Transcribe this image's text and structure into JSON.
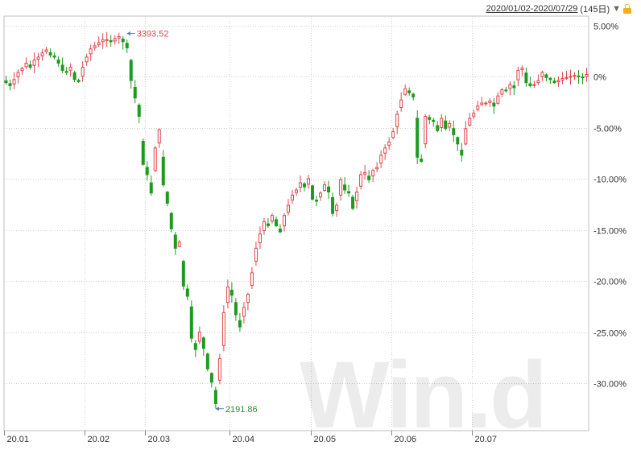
{
  "header": {
    "date_range": "2020/01/02-2020/07/29",
    "count": "(145日)",
    "dropdown_icon": "triangle-down-icon",
    "lock_icon": "lock-icon"
  },
  "watermark": "Win.d",
  "colors": {
    "up": "#e0454b",
    "down": "#1f9a1f",
    "grid": "#cfcfcf",
    "axis": "#888888"
  },
  "chart_data": {
    "type": "candlestick",
    "y_unit": "% change",
    "ylim": [
      -34,
      6
    ],
    "yticks": [
      5,
      0,
      -5,
      -10,
      -15,
      -20,
      -25,
      -30
    ],
    "ytick_labels": [
      "5.00%",
      "0%",
      "-5.00%",
      "-10.00%",
      "-15.00%",
      "-20.00%",
      "-25.00%",
      "-30.00%"
    ],
    "xtick_labels": [
      "20.01",
      "20.02",
      "20.03",
      "20.04",
      "20.05",
      "20.06",
      "20.07"
    ],
    "xtick_index": [
      0,
      20,
      35,
      56,
      76,
      96,
      116
    ],
    "n_bars": 145,
    "annotations": [
      {
        "label": "3393.52",
        "bar": 30,
        "value": 4.2,
        "type": "high"
      },
      {
        "label": "2191.86",
        "bar": 52,
        "value": -32.5,
        "type": "low"
      }
    ],
    "close": [
      -0.6,
      -0.9,
      -0.3,
      0.4,
      0.8,
      1.3,
      0.9,
      1.6,
      1.9,
      2.3,
      2.6,
      2.1,
      1.9,
      1.3,
      0.6,
      0.4,
      0.9,
      -0.3,
      -0.5,
      0.9,
      1.9,
      2.7,
      3.0,
      3.3,
      3.6,
      3.6,
      3.4,
      3.7,
      3.9,
      3.4,
      2.8,
      -0.4,
      -2.1,
      -3.9,
      -8.6,
      -9.6,
      -11.4,
      -7.0,
      -5.2,
      -10.6,
      -12.4,
      -14.9,
      -16.8,
      -16.2,
      -20.5,
      -21.5,
      -25.6,
      -26.7,
      -25.0,
      -26.6,
      -28.6,
      -29.9,
      -32.0,
      -27.6,
      -23.1,
      -20.6,
      -21.4,
      -23.3,
      -24.5,
      -22.6,
      -21.3,
      -19.2,
      -16.8,
      -15.4,
      -14.2,
      -14.6,
      -13.6,
      -14.6,
      -15.2,
      -13.6,
      -12.6,
      -11.6,
      -11.1,
      -10.4,
      -10.8,
      -10.0,
      -12.0,
      -12.2,
      -11.4,
      -10.6,
      -11.3,
      -13.4,
      -12.6,
      -10.1,
      -11.1,
      -11.4,
      -12.9,
      -11.3,
      -9.6,
      -9.4,
      -10.1,
      -9.2,
      -8.9,
      -7.7,
      -7.0,
      -6.4,
      -5.4,
      -3.7,
      -2.3,
      -1.2,
      -1.6,
      -2.0,
      -7.9,
      -8.3,
      -3.9,
      -4.2,
      -4.4,
      -5.3,
      -4.1,
      -5.1,
      -4.6,
      -5.7,
      -6.6,
      -7.7,
      -5.1,
      -4.1,
      -3.6,
      -2.9,
      -2.6,
      -2.6,
      -2.4,
      -2.9,
      -1.9,
      -1.3,
      -1.4,
      -0.8,
      -1.1,
      0.6,
      0.8,
      -0.6,
      -0.9,
      -0.8,
      -0.4,
      0.4,
      -0.1,
      -0.3,
      -0.6,
      -0.4,
      -0.2,
      -0.1,
      0.0,
      0.1,
      0.0,
      -0.1,
      0.2
    ]
  }
}
